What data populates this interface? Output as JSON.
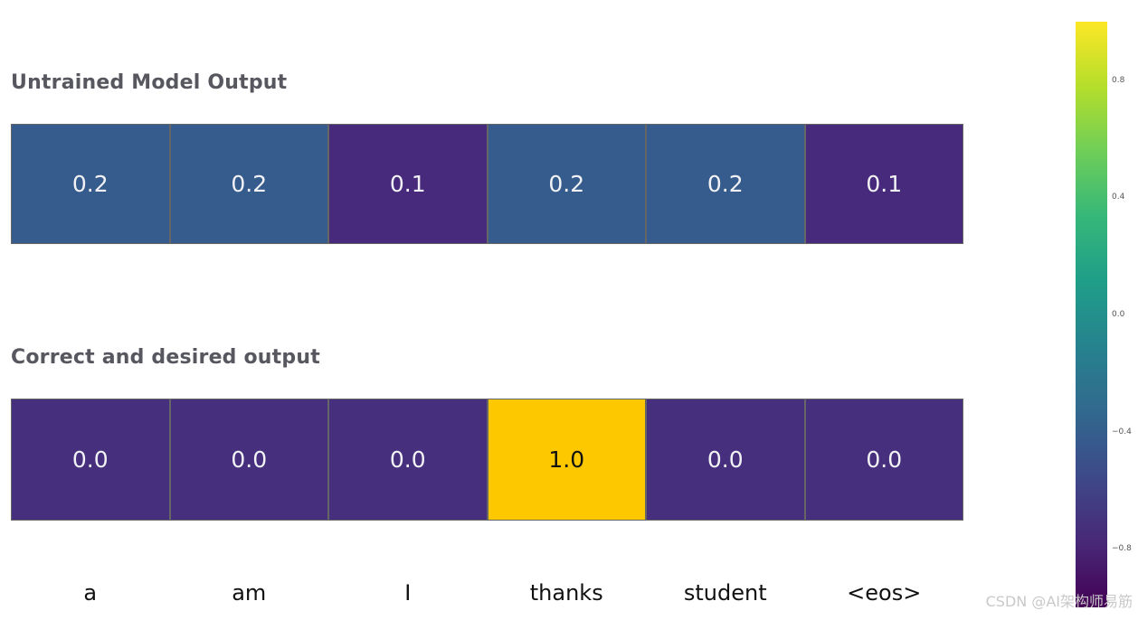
{
  "watermark": {
    "text": "CSDN @AI架构师易筋",
    "color": "#c9c9c9"
  },
  "colors": {
    "background": "#ffffff",
    "title_text": "#57575f",
    "grid_line": "#666666",
    "token_label": "#111111",
    "tick_label": "#555555",
    "cell_blue": "#365c8d",
    "cell_purple": "#472a7c",
    "cell_purple_dark": "#46307e",
    "cell_yellow": "#fdc800"
  },
  "chart_data": {
    "type": "heatmap",
    "tokens": [
      "a",
      "am",
      "I",
      "thanks",
      "student",
      "<eos>"
    ],
    "rows": [
      {
        "title": "Untrained Model Output",
        "values": [
          0.2,
          0.2,
          0.1,
          0.2,
          0.2,
          0.1
        ],
        "cell_colors": [
          "#365c8d",
          "#365c8d",
          "#472a7c",
          "#365c8d",
          "#365c8d",
          "#472a7c"
        ],
        "text_colors": [
          "#f2f2f5",
          "#f2f2f5",
          "#f2f2f5",
          "#f2f2f5",
          "#f2f2f5",
          "#f2f2f5"
        ]
      },
      {
        "title": "Correct and desired output",
        "values": [
          0.0,
          0.0,
          0.0,
          1.0,
          0.0,
          0.0
        ],
        "cell_colors": [
          "#46307e",
          "#46307e",
          "#46307e",
          "#fdc800",
          "#46307e",
          "#46307e"
        ],
        "text_colors": [
          "#f2f2f5",
          "#f2f2f5",
          "#f2f2f5",
          "#111111",
          "#f2f2f5",
          "#f2f2f5"
        ]
      }
    ],
    "colorbar": {
      "colormap": "viridis",
      "min": -1.0,
      "max": 1.0,
      "ticks": [
        0.8,
        0.4,
        0.0,
        -0.4,
        -0.8
      ],
      "tick_labels": [
        "0.8",
        "0.4",
        "0.0",
        "−0.4",
        "−0.8"
      ],
      "gradient_stops": [
        {
          "pos": 0.0,
          "color": "#440154"
        },
        {
          "pos": 0.111,
          "color": "#482878"
        },
        {
          "pos": 0.222,
          "color": "#3e4989"
        },
        {
          "pos": 0.333,
          "color": "#31688e"
        },
        {
          "pos": 0.444,
          "color": "#26828e"
        },
        {
          "pos": 0.556,
          "color": "#1f9e89"
        },
        {
          "pos": 0.667,
          "color": "#35b779"
        },
        {
          "pos": 0.778,
          "color": "#6ece58"
        },
        {
          "pos": 0.889,
          "color": "#b5de2b"
        },
        {
          "pos": 1.0,
          "color": "#fde725"
        }
      ],
      "legend_position": "right"
    },
    "title": "",
    "xlabel": "",
    "ylabel": "",
    "grid": false
  }
}
